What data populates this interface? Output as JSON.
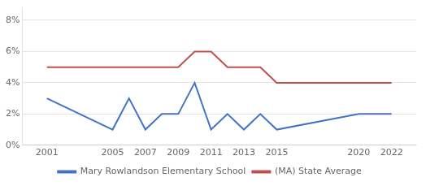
{
  "chart_data": {
    "type": "line",
    "x": [
      2001,
      2003,
      2005,
      2006,
      2007,
      2008,
      2009,
      2010,
      2011,
      2012,
      2013,
      2014,
      2015,
      2020,
      2022
    ],
    "series": [
      {
        "name": "Mary Rowlandson Elementary School",
        "color": "#4472c4",
        "values": [
          3,
          2,
          1,
          3,
          1,
          2,
          2,
          4,
          1,
          2,
          1,
          2,
          1,
          2,
          2
        ]
      },
      {
        "name": "(MA) State Average",
        "color": "#c0504d",
        "values": [
          5,
          5,
          5,
          5,
          5,
          5,
          5,
          6,
          6,
          5,
          5,
          5,
          4,
          4,
          4
        ]
      }
    ],
    "xlim": [
      1999.5,
      2023.5
    ],
    "xticks": [
      2001,
      2005,
      2007,
      2009,
      2011,
      2013,
      2015,
      2020,
      2022
    ],
    "ylim": [
      0,
      8.8
    ],
    "yticks": [
      {
        "value": 0,
        "label": "0%"
      },
      {
        "value": 2,
        "label": "2%"
      },
      {
        "value": 4,
        "label": "4%"
      },
      {
        "value": 6,
        "label": "6%"
      },
      {
        "value": 8,
        "label": "8%"
      }
    ],
    "grid": "y",
    "legend": "bottom"
  }
}
